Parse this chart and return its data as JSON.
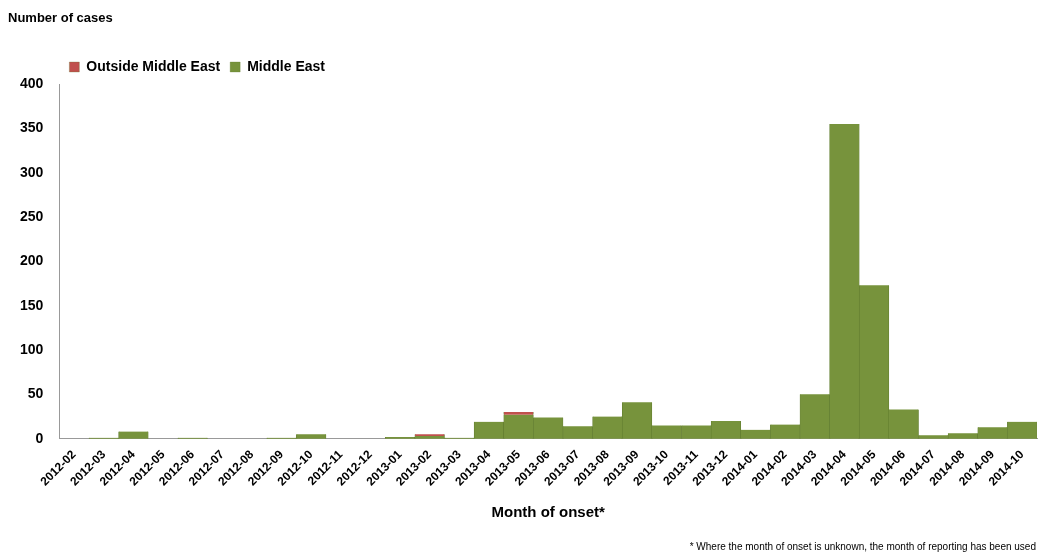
{
  "chart_data": {
    "type": "bar",
    "stacked": true,
    "xlabel": "Month of onset*",
    "ylabel": "Number of cases",
    "categories": [
      "2012-02",
      "2012-03",
      "2012-04",
      "2012-05",
      "2012-06",
      "2012-07",
      "2012-08",
      "2012-09",
      "2012-10",
      "2012-11",
      "2012-12",
      "2013-01",
      "2013-02",
      "2013-03",
      "2013-04",
      "2013-05",
      "2013-06",
      "2013-07",
      "2013-08",
      "2013-09",
      "2013-10",
      "2013-11",
      "2013-12",
      "2014-01",
      "2014-02",
      "2014-03",
      "2014-04",
      "2014-05",
      "2014-06",
      "2014-07",
      "2014-08",
      "2014-09",
      "2014-10"
    ],
    "series": [
      {
        "name": "Middle East",
        "color": "#77933c",
        "values": [
          0,
          1,
          8,
          0,
          1,
          0,
          0,
          1,
          5,
          0,
          0,
          2,
          3,
          1,
          19,
          27,
          24,
          14,
          25,
          41,
          15,
          15,
          20,
          10,
          16,
          50,
          355,
          173,
          33,
          4,
          6,
          13,
          19
        ]
      },
      {
        "name": "Outside Middle East",
        "color": "#c0504d",
        "values": [
          0,
          0,
          0,
          0,
          0,
          0,
          0,
          0,
          0,
          0,
          0,
          0,
          2,
          0,
          0,
          3,
          0,
          0,
          0,
          0,
          0,
          0,
          0,
          0,
          0,
          0,
          0,
          0,
          0,
          0,
          0,
          0,
          0
        ]
      }
    ],
    "ylim": [
      0,
      400
    ],
    "yticks": [
      0,
      50,
      100,
      150,
      200,
      250,
      300,
      350,
      400
    ],
    "grid": false,
    "legend": "top left",
    "annotations": [
      "* Where the month of onset is unknown, the month of reporting has been used"
    ]
  }
}
